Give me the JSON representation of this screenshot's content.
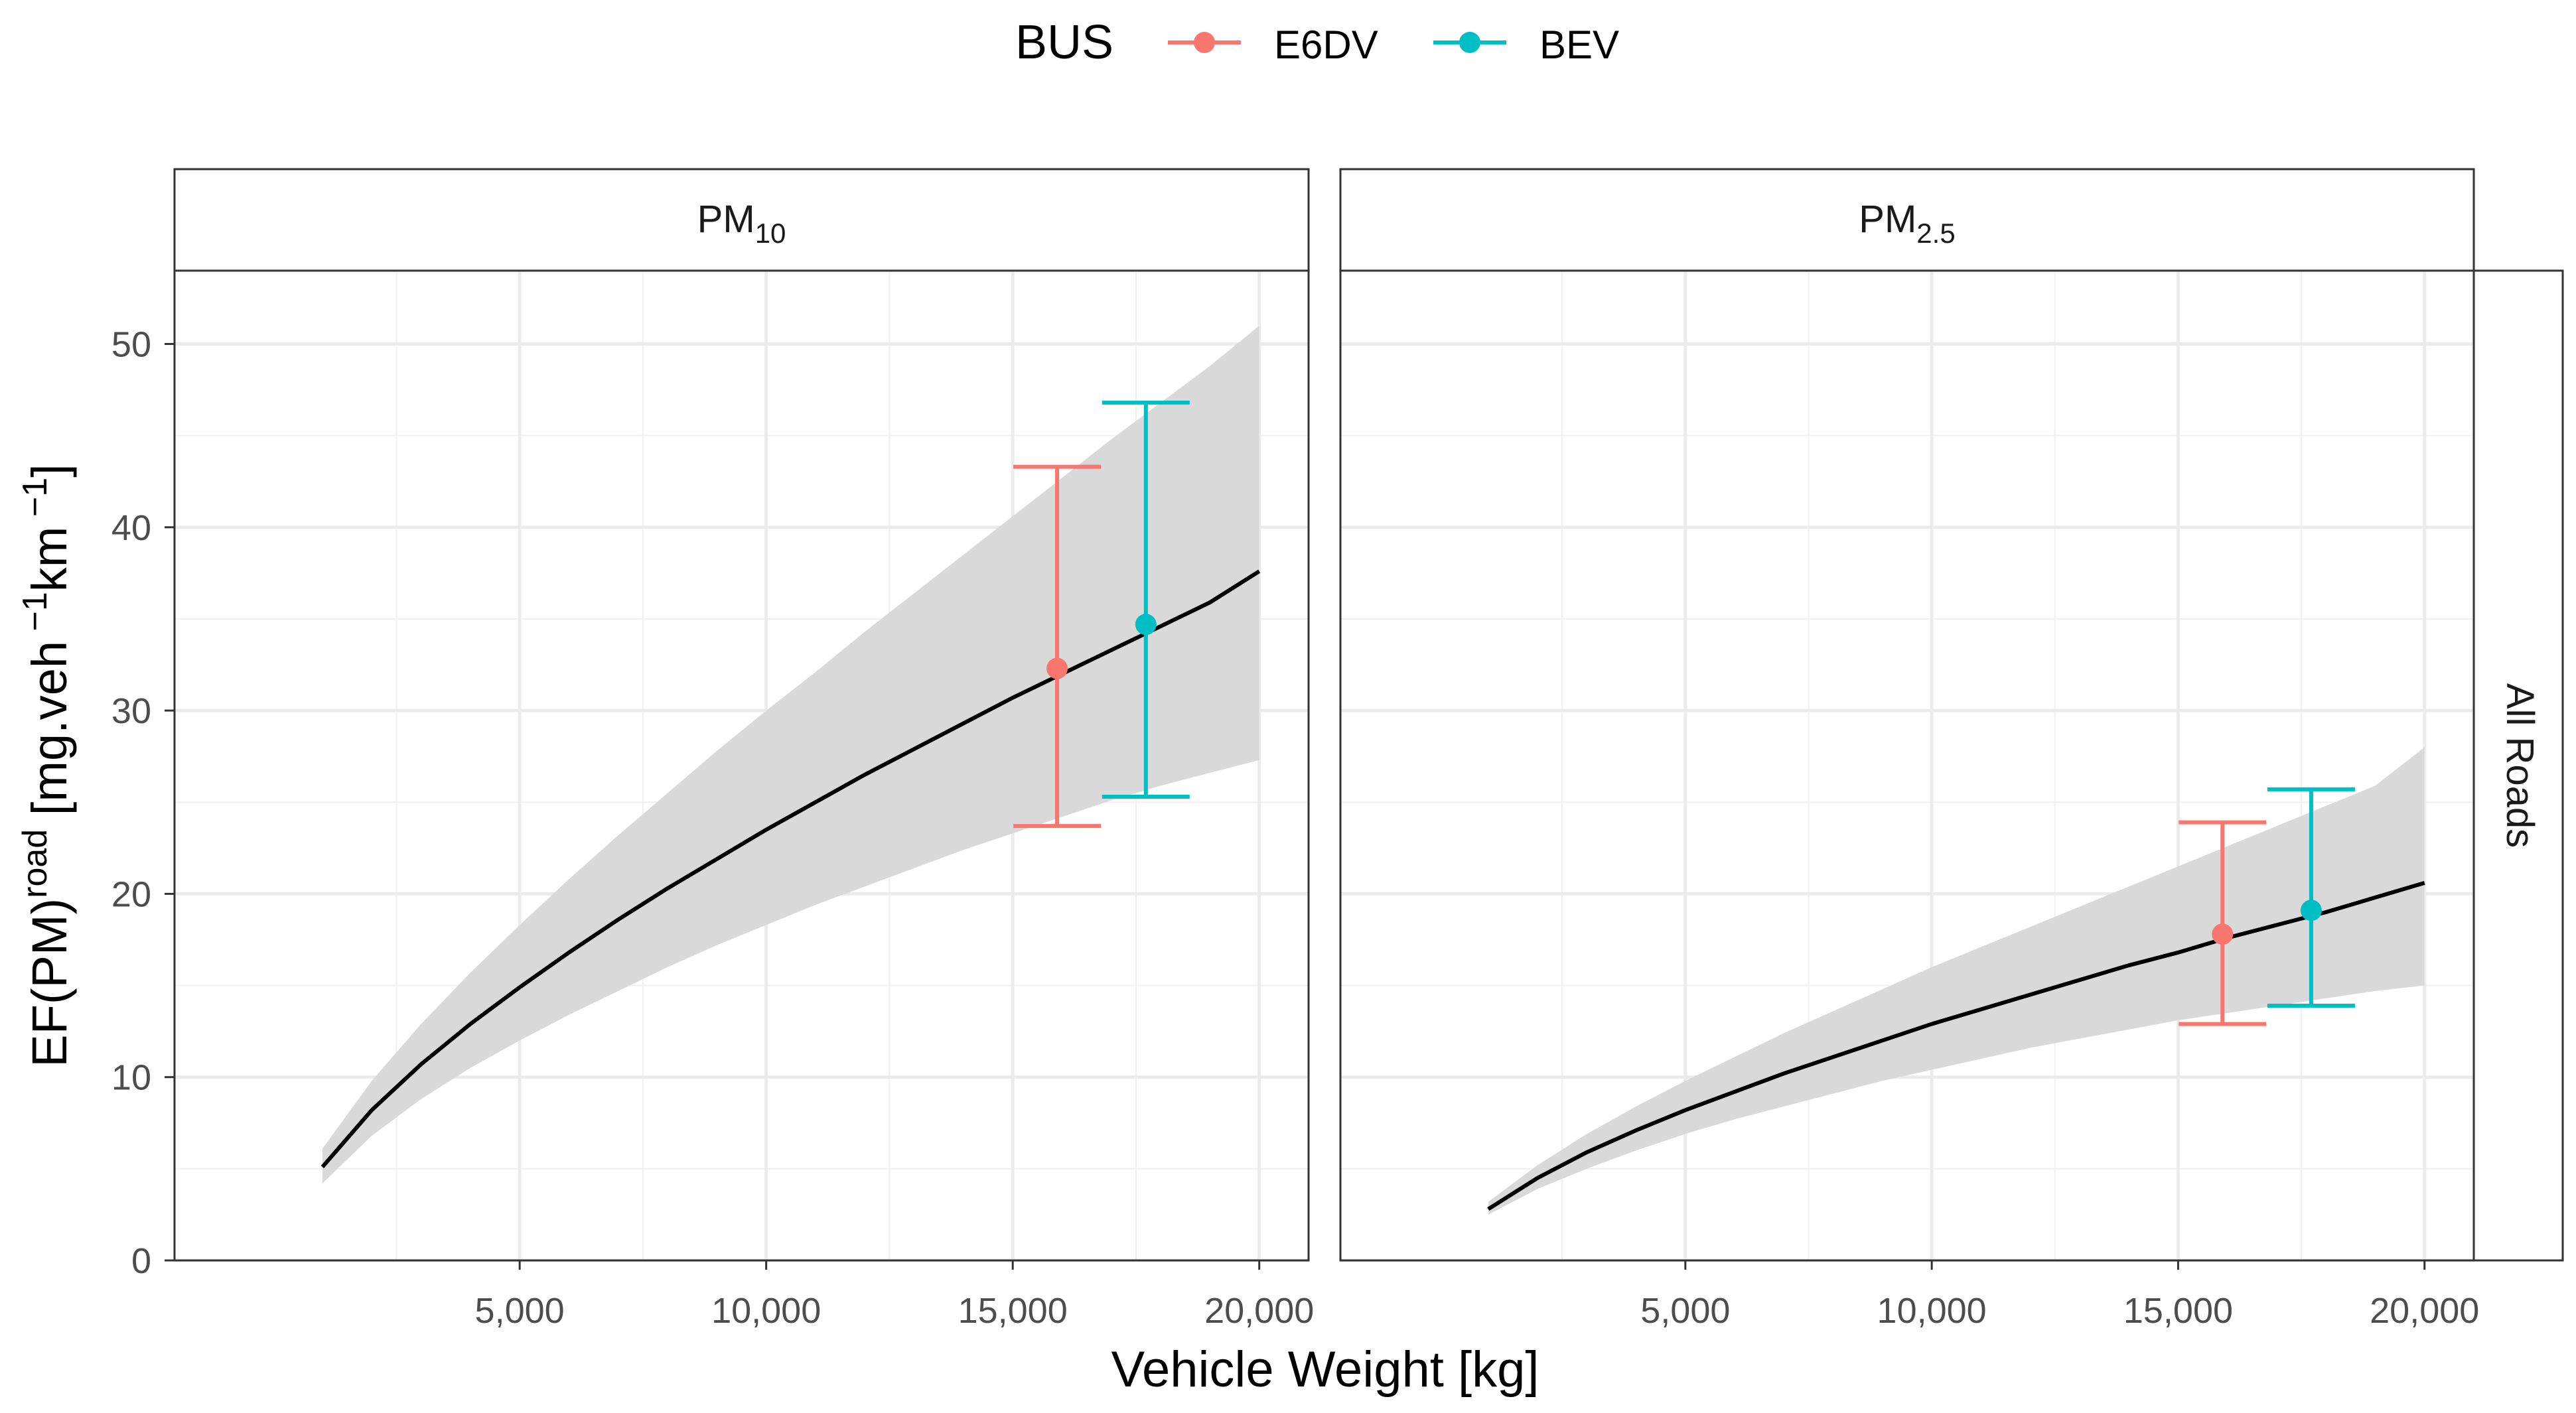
{
  "chart_data": {
    "type": "line",
    "legend": {
      "title": "BUS",
      "position": "top",
      "entries": [
        {
          "name": "E6DV",
          "color": "#F8766D"
        },
        {
          "name": "BEV",
          "color": "#00BFC4"
        }
      ]
    },
    "xlabel": "Vehicle Weight [kg]",
    "ylabel": {
      "base": "EF(PM)",
      "sup": "road",
      "unit_open": " [mg.veh",
      "unit_sup1": " −1",
      "unit_mid": "km",
      "unit_sup2": " −1",
      "unit_close": "]"
    },
    "xlim": [
      -2000,
      21000
    ],
    "ylim": [
      0,
      54
    ],
    "xticks": [
      5000,
      10000,
      15000,
      20000
    ],
    "xtick_labels": [
      "5,000",
      "10,000",
      "15,000",
      "20,000"
    ],
    "yticks": [
      0,
      10,
      20,
      30,
      40,
      50
    ],
    "ytick_labels": [
      "0",
      "10",
      "20",
      "30",
      "40",
      "50"
    ],
    "grid": true,
    "row_strip": "All Roads",
    "line_color": "#000000",
    "ribbon_color": "#D9D9D9",
    "panels": [
      {
        "title": "PM",
        "title_sub": "10",
        "curve": {
          "x": [
            1000,
            2000,
            3000,
            4000,
            5000,
            6000,
            7000,
            8000,
            9000,
            10000,
            11000,
            12000,
            13000,
            14000,
            15000,
            16000,
            17000,
            18000,
            19000,
            20000
          ],
          "y": [
            5.1,
            8.2,
            10.7,
            12.9,
            14.9,
            16.8,
            18.6,
            20.3,
            21.9,
            23.5,
            25.0,
            26.5,
            27.9,
            29.3,
            30.7,
            32.0,
            33.3,
            34.6,
            35.9,
            37.6
          ],
          "lower": [
            4.2,
            6.8,
            8.8,
            10.5,
            12.0,
            13.4,
            14.7,
            16.0,
            17.2,
            18.3,
            19.4,
            20.4,
            21.4,
            22.4,
            23.3,
            24.2,
            25.1,
            25.9,
            26.6,
            27.3
          ],
          "upper": [
            6.1,
            9.8,
            12.9,
            15.7,
            18.3,
            20.8,
            23.2,
            25.5,
            27.8,
            30.0,
            32.1,
            34.3,
            36.4,
            38.5,
            40.6,
            42.7,
            44.8,
            46.8,
            48.8,
            51.0
          ]
        },
        "points": [
          {
            "series": "E6DV",
            "x": 15900,
            "y": 32.3,
            "ymin": 23.7,
            "ymax": 43.3
          },
          {
            "series": "BEV",
            "x": 17700,
            "y": 34.7,
            "ymin": 25.3,
            "ymax": 46.8
          }
        ]
      },
      {
        "title": "PM",
        "title_sub": "2.5",
        "curve": {
          "x": [
            1000,
            2000,
            3000,
            4000,
            5000,
            6000,
            7000,
            8000,
            9000,
            10000,
            11000,
            12000,
            13000,
            14000,
            15000,
            16000,
            17000,
            18000,
            19000,
            20000
          ],
          "y": [
            2.8,
            4.5,
            5.9,
            7.1,
            8.2,
            9.2,
            10.2,
            11.1,
            12.0,
            12.9,
            13.7,
            14.5,
            15.3,
            16.1,
            16.8,
            17.6,
            18.3,
            19.0,
            19.8,
            20.6
          ],
          "lower": [
            2.5,
            3.9,
            5.0,
            6.0,
            6.9,
            7.7,
            8.4,
            9.1,
            9.8,
            10.4,
            11.0,
            11.6,
            12.1,
            12.6,
            13.1,
            13.5,
            13.9,
            14.3,
            14.7,
            15.0
          ],
          "upper": [
            3.2,
            5.2,
            6.9,
            8.4,
            9.8,
            11.1,
            12.4,
            13.6,
            14.8,
            16.0,
            17.1,
            18.2,
            19.3,
            20.4,
            21.5,
            22.6,
            23.7,
            24.8,
            25.9,
            28.0
          ]
        },
        "points": [
          {
            "series": "E6DV",
            "x": 15900,
            "y": 17.8,
            "ymin": 12.9,
            "ymax": 23.9
          },
          {
            "series": "BEV",
            "x": 17700,
            "y": 19.1,
            "ymin": 13.9,
            "ymax": 25.7
          }
        ]
      }
    ]
  }
}
